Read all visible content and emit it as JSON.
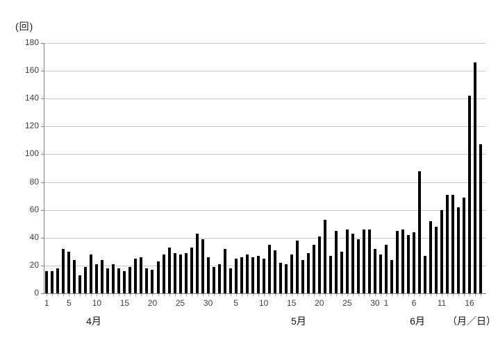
{
  "chart": {
    "unit_label": "(回)",
    "month_day_label": "（月／日）"
  },
  "chart_data": {
    "type": "bar",
    "title": "",
    "ylabel": "(回)",
    "xlabel": "（月／日）",
    "ylim": [
      0,
      180
    ],
    "y_ticks": [
      0,
      20,
      40,
      60,
      80,
      100,
      120,
      140,
      160,
      180
    ],
    "grid": "horizontal",
    "bar_color": "#000000",
    "legend": "none",
    "months": [
      {
        "label": "4月",
        "days": 30,
        "labeled_days": [
          1,
          5,
          10,
          15,
          20,
          25,
          30
        ]
      },
      {
        "label": "5月",
        "days": 31,
        "labeled_days": [
          5,
          10,
          15,
          20,
          25,
          30
        ]
      },
      {
        "label": "6月",
        "days": 18,
        "labeled_days": [
          1,
          6,
          11,
          16
        ]
      }
    ],
    "x": [
      "4/1",
      "4/2",
      "4/3",
      "4/4",
      "4/5",
      "4/6",
      "4/7",
      "4/8",
      "4/9",
      "4/10",
      "4/11",
      "4/12",
      "4/13",
      "4/14",
      "4/15",
      "4/16",
      "4/17",
      "4/18",
      "4/19",
      "4/20",
      "4/21",
      "4/22",
      "4/23",
      "4/24",
      "4/25",
      "4/26",
      "4/27",
      "4/28",
      "4/29",
      "4/30",
      "5/1",
      "5/2",
      "5/3",
      "5/4",
      "5/5",
      "5/6",
      "5/7",
      "5/8",
      "5/9",
      "5/10",
      "5/11",
      "5/12",
      "5/13",
      "5/14",
      "5/15",
      "5/16",
      "5/17",
      "5/18",
      "5/19",
      "5/20",
      "5/21",
      "5/22",
      "5/23",
      "5/24",
      "5/25",
      "5/26",
      "5/27",
      "5/28",
      "5/29",
      "5/30",
      "5/31",
      "6/1",
      "6/2",
      "6/3",
      "6/4",
      "6/5",
      "6/6",
      "6/7",
      "6/8",
      "6/9",
      "6/10",
      "6/11",
      "6/12",
      "6/13",
      "6/14",
      "6/15",
      "6/16",
      "6/17",
      "6/18"
    ],
    "values": [
      16,
      16,
      18,
      32,
      30,
      24,
      13,
      19,
      28,
      21,
      24,
      18,
      21,
      18,
      16,
      19,
      25,
      26,
      18,
      17,
      23,
      28,
      33,
      29,
      28,
      29,
      33,
      43,
      39,
      26,
      19,
      21,
      32,
      18,
      25,
      26,
      28,
      26,
      27,
      25,
      35,
      31,
      22,
      21,
      28,
      38,
      24,
      29,
      35,
      41,
      53,
      27,
      45,
      30,
      46,
      43,
      39,
      46,
      46,
      32,
      28,
      35,
      24,
      45,
      46,
      42,
      44,
      88,
      27,
      52,
      48,
      60,
      71,
      71,
      62,
      69,
      142,
      166,
      107
    ]
  }
}
